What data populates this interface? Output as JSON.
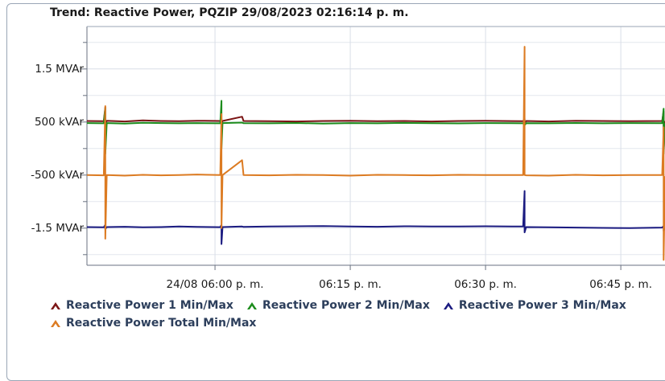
{
  "chart_data": {
    "type": "line",
    "title": "Trend: Reactive Power, PQZIP 29/08/2023 02:16:14 p. m.",
    "x": [
      "24/08 17:45:48",
      "24/08 17:47:40",
      "24/08 17:47:50",
      "24/08 17:47:50",
      "24/08 17:48:00",
      "24/08 17:50:00",
      "24/08 17:52:00",
      "24/08 17:54:00",
      "24/08 17:56:00",
      "24/08 17:58:00",
      "24/08 18:00:35",
      "24/08 18:00:43",
      "24/08 18:00:43",
      "24/08 18:00:50",
      "24/08 18:03:00",
      "24/08 18:03:10",
      "24/08 18:06:00",
      "24/08 18:09:00",
      "24/08 18:12:00",
      "24/08 18:15:00",
      "24/08 18:18:00",
      "24/08 18:21:00",
      "24/08 18:24:00",
      "24/08 18:27:00",
      "24/08 18:30:00",
      "24/08 18:34:10",
      "24/08 18:34:20",
      "24/08 18:34:20",
      "24/08 18:34:30",
      "24/08 18:37:00",
      "24/08 18:40:00",
      "24/08 18:43:00",
      "24/08 18:46:00",
      "24/08 18:49:35",
      "24/08 18:49:45",
      "24/08 18:49:45",
      "24/08 18:49:54"
    ],
    "series": [
      {
        "name": "Reactive Power 1 Min/Max",
        "color": "#7b1414",
        "values": [
          520,
          515,
          780,
          450,
          525,
          510,
          530,
          520,
          515,
          525,
          520,
          560,
          470,
          520,
          600,
          520,
          515,
          510,
          520,
          525,
          515,
          520,
          510,
          520,
          525,
          515,
          560,
          480,
          520,
          510,
          525,
          520,
          515,
          520,
          700,
          -50,
          520
        ]
      },
      {
        "name": "Reactive Power 2 Min/Max",
        "color": "#1c8c1c",
        "values": [
          480,
          475,
          760,
          -100,
          480,
          470,
          485,
          480,
          475,
          480,
          475,
          900,
          0,
          480,
          490,
          478,
          475,
          482,
          470,
          480,
          476,
          483,
          478,
          474,
          480,
          476,
          520,
          440,
          478,
          475,
          482,
          476,
          480,
          478,
          750,
          -100,
          480
        ]
      },
      {
        "name": "Reactive Power 3 Min/Max",
        "color": "#1a1a80",
        "values": [
          -1480,
          -1485,
          -1440,
          -1520,
          -1480,
          -1475,
          -1485,
          -1480,
          -1470,
          -1478,
          -1482,
          -1440,
          -1800,
          -1480,
          -1470,
          -1478,
          -1470,
          -1465,
          -1460,
          -1470,
          -1475,
          -1465,
          -1470,
          -1468,
          -1465,
          -1470,
          -800,
          -1580,
          -1480,
          -1485,
          -1490,
          -1495,
          -1500,
          -1490,
          -1460,
          -1550,
          -1500
        ]
      },
      {
        "name": "Reactive Power Total Min/Max",
        "color": "#dc7b22",
        "values": [
          -500,
          -505,
          800,
          -1700,
          -500,
          -510,
          -495,
          -505,
          -500,
          -490,
          -500,
          650,
          -1500,
          -500,
          -220,
          -500,
          -505,
          -495,
          -500,
          -510,
          -495,
          -500,
          -505,
          -495,
          -500,
          -500,
          1920,
          -500,
          -505,
          -510,
          -495,
          -505,
          -500,
          -500,
          400,
          -2100,
          -520
        ]
      }
    ],
    "xlim": [
      "24/08 17:45:48",
      "24/08 18:49:54"
    ],
    "xticks": [
      {
        "value": "24/08 18:00:00",
        "label": "24/08 06:00 p. m."
      },
      {
        "value": "24/08 18:15:00",
        "label": "06:15 p. m."
      },
      {
        "value": "24/08 18:30:00",
        "label": "06:30 p. m."
      },
      {
        "value": "24/08 18:45:00",
        "label": "06:45 p. m."
      }
    ],
    "ylim": [
      -2200,
      2300
    ],
    "yticks": [
      {
        "value": 1500,
        "label": "1.5 MVAr"
      },
      {
        "value": 500,
        "label": "500 kVAr"
      },
      {
        "value": -500,
        "label": "-500 kVAr"
      },
      {
        "value": -1500,
        "label": "-1.5 MVAr"
      }
    ],
    "yminor": [
      2000,
      1000,
      0,
      -1000,
      -2000
    ],
    "grid": true
  }
}
